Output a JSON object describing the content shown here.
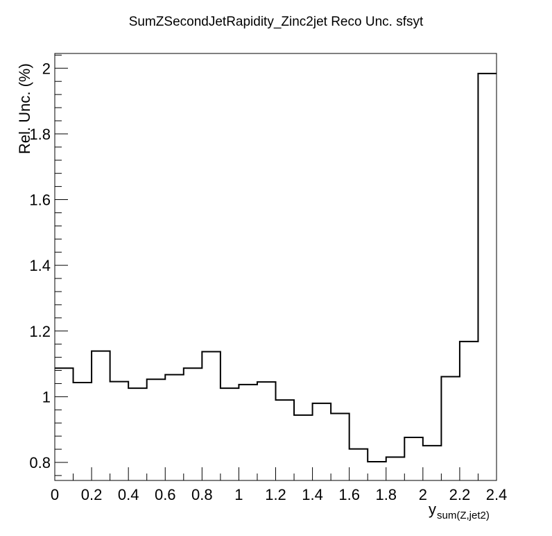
{
  "chart_data": {
    "type": "step",
    "title": "SumZSecondJetRapidity_Zinc2jet Reco Unc. sfsyt",
    "ylabel": "Rel. Unc. (%)",
    "xlabel_main": "y",
    "xlabel_sub": "sum(Z,jet2)",
    "xlim": [
      0,
      2.4
    ],
    "ylim": [
      0.745,
      2.045
    ],
    "x_ticks": [
      {
        "value": 0,
        "label": "0"
      },
      {
        "value": 0.2,
        "label": "0.2"
      },
      {
        "value": 0.4,
        "label": "0.4"
      },
      {
        "value": 0.6,
        "label": "0.6"
      },
      {
        "value": 0.8,
        "label": "0.8"
      },
      {
        "value": 1.0,
        "label": "1"
      },
      {
        "value": 1.2,
        "label": "1.2"
      },
      {
        "value": 1.4,
        "label": "1.4"
      },
      {
        "value": 1.6,
        "label": "1.6"
      },
      {
        "value": 1.8,
        "label": "1.8"
      },
      {
        "value": 2.0,
        "label": "2"
      },
      {
        "value": 2.2,
        "label": "2.2"
      },
      {
        "value": 2.4,
        "label": "2.4"
      }
    ],
    "y_ticks": [
      {
        "value": 0.8,
        "label": "0.8"
      },
      {
        "value": 1.0,
        "label": "1"
      },
      {
        "value": 1.2,
        "label": "1.2"
      },
      {
        "value": 1.4,
        "label": "1.4"
      },
      {
        "value": 1.6,
        "label": "1.6"
      },
      {
        "value": 1.8,
        "label": "1.8"
      },
      {
        "value": 2.0,
        "label": "2"
      }
    ],
    "bin_edges": [
      0,
      0.1,
      0.2,
      0.3,
      0.4,
      0.5,
      0.6,
      0.7,
      0.8,
      0.9,
      1.0,
      1.1,
      1.2,
      1.3,
      1.4,
      1.5,
      1.6,
      1.7,
      1.8,
      1.9,
      2.0,
      2.1,
      2.2,
      2.3,
      2.4
    ],
    "values": [
      1.087,
      1.043,
      1.139,
      1.046,
      1.026,
      1.053,
      1.067,
      1.087,
      1.137,
      1.026,
      1.037,
      1.045,
      0.99,
      0.944,
      0.98,
      0.949,
      0.841,
      0.802,
      0.816,
      0.876,
      0.851,
      1.061,
      1.168,
      1.984
    ],
    "grid": false,
    "line_color": "#000000"
  }
}
